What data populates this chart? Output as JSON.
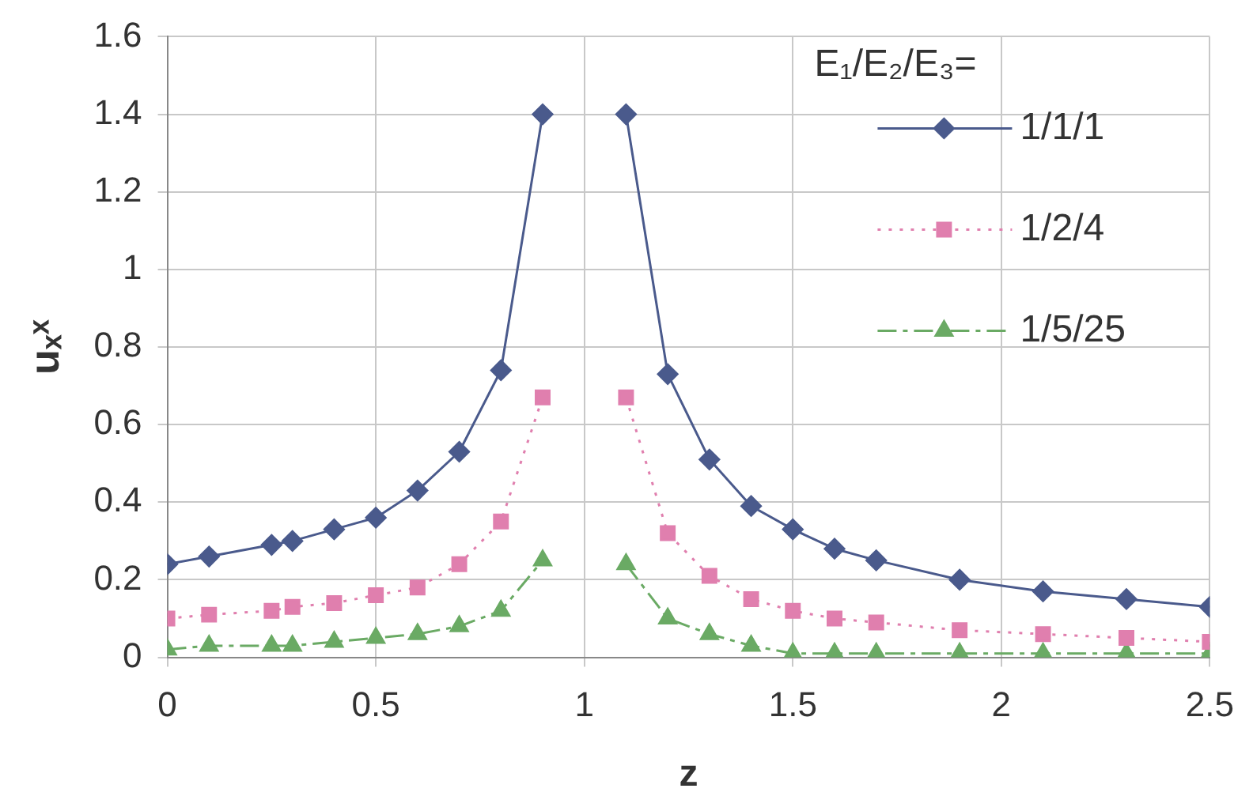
{
  "chart_data": {
    "type": "line",
    "x": [
      0,
      0.1,
      0.25,
      0.3,
      0.4,
      0.5,
      0.6,
      0.7,
      0.8,
      0.9,
      1,
      1.1,
      1.2,
      1.3,
      1.4,
      1.5,
      1.6,
      1.7,
      1.9,
      2.1,
      2.3,
      2.5
    ],
    "series": [
      {
        "name": "1/1/1",
        "color": "#4a5a8c",
        "marker": "diamond",
        "line_style": "solid",
        "values": [
          0.24,
          0.26,
          0.29,
          0.3,
          0.33,
          0.36,
          0.43,
          0.53,
          0.74,
          1.4,
          null,
          1.4,
          0.73,
          0.51,
          0.39,
          0.33,
          0.28,
          0.25,
          0.2,
          0.17,
          0.15,
          0.13
        ]
      },
      {
        "name": "1/2/4",
        "color": "#e07fae",
        "marker": "square",
        "line_style": "dotted",
        "values": [
          0.1,
          0.11,
          0.12,
          0.13,
          0.14,
          0.16,
          0.18,
          0.24,
          0.35,
          0.67,
          null,
          0.67,
          0.32,
          0.21,
          0.15,
          0.12,
          0.1,
          0.09,
          0.07,
          0.06,
          0.05,
          0.04
        ]
      },
      {
        "name": "1/5/25",
        "color": "#6aaa64",
        "marker": "triangle",
        "line_style": "dashed",
        "values": [
          0.02,
          0.03,
          0.03,
          0.03,
          0.04,
          0.05,
          0.06,
          0.08,
          0.12,
          0.25,
          null,
          0.24,
          0.1,
          0.06,
          0.03,
          0.01,
          0.01,
          0.01,
          0.01,
          0.01,
          0.01,
          0.01
        ]
      }
    ],
    "xlabel": "z",
    "ylabel": "uₓˣ",
    "legend_title": "E₁/E₂/E₃=",
    "xlim": [
      0,
      2.5
    ],
    "xticks": [
      0,
      0.5,
      1,
      1.5,
      2,
      2.5
    ],
    "ylim": [
      0,
      1.6
    ],
    "yticks": [
      0,
      0.2,
      0.4,
      0.6,
      0.8,
      1,
      1.2,
      1.4,
      1.6
    ],
    "grid": true,
    "legend": "top right"
  }
}
